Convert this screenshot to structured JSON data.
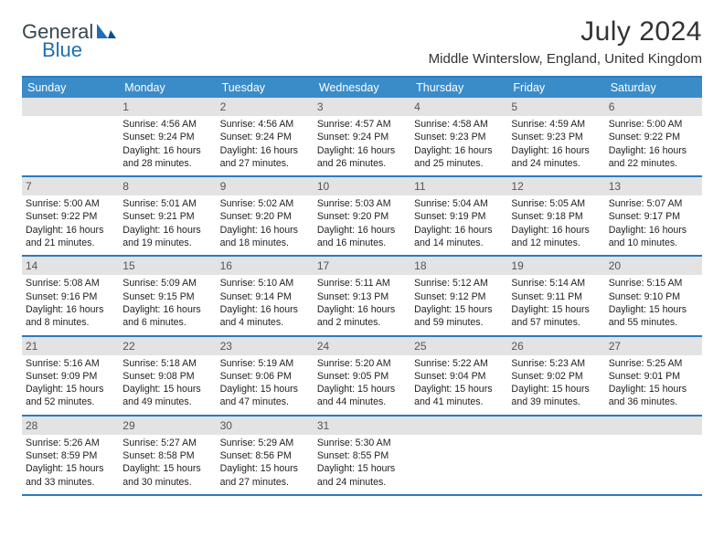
{
  "brand": {
    "word1": "General",
    "word2": "Blue"
  },
  "title": "July 2024",
  "location": "Middle Winterslow, England, United Kingdom",
  "colors": {
    "header_bar": "#3a8cc9",
    "rule": "#2b7bbd",
    "daynum_bg": "#e3e3e3",
    "text": "#222222",
    "logo_gray": "#37474f",
    "logo_blue": "#1f6fb2",
    "background": "#ffffff"
  },
  "typography": {
    "title_fontsize": 30,
    "location_fontsize": 15,
    "dow_fontsize": 12.5,
    "daynum_fontsize": 12,
    "body_fontsize": 10.6
  },
  "dow": [
    "Sunday",
    "Monday",
    "Tuesday",
    "Wednesday",
    "Thursday",
    "Friday",
    "Saturday"
  ],
  "weeks": [
    [
      {
        "n": "",
        "sunrise": "",
        "sunset": "",
        "daylight": ""
      },
      {
        "n": "1",
        "sunrise": "Sunrise: 4:56 AM",
        "sunset": "Sunset: 9:24 PM",
        "daylight": "Daylight: 16 hours and 28 minutes."
      },
      {
        "n": "2",
        "sunrise": "Sunrise: 4:56 AM",
        "sunset": "Sunset: 9:24 PM",
        "daylight": "Daylight: 16 hours and 27 minutes."
      },
      {
        "n": "3",
        "sunrise": "Sunrise: 4:57 AM",
        "sunset": "Sunset: 9:24 PM",
        "daylight": "Daylight: 16 hours and 26 minutes."
      },
      {
        "n": "4",
        "sunrise": "Sunrise: 4:58 AM",
        "sunset": "Sunset: 9:23 PM",
        "daylight": "Daylight: 16 hours and 25 minutes."
      },
      {
        "n": "5",
        "sunrise": "Sunrise: 4:59 AM",
        "sunset": "Sunset: 9:23 PM",
        "daylight": "Daylight: 16 hours and 24 minutes."
      },
      {
        "n": "6",
        "sunrise": "Sunrise: 5:00 AM",
        "sunset": "Sunset: 9:22 PM",
        "daylight": "Daylight: 16 hours and 22 minutes."
      }
    ],
    [
      {
        "n": "7",
        "sunrise": "Sunrise: 5:00 AM",
        "sunset": "Sunset: 9:22 PM",
        "daylight": "Daylight: 16 hours and 21 minutes."
      },
      {
        "n": "8",
        "sunrise": "Sunrise: 5:01 AM",
        "sunset": "Sunset: 9:21 PM",
        "daylight": "Daylight: 16 hours and 19 minutes."
      },
      {
        "n": "9",
        "sunrise": "Sunrise: 5:02 AM",
        "sunset": "Sunset: 9:20 PM",
        "daylight": "Daylight: 16 hours and 18 minutes."
      },
      {
        "n": "10",
        "sunrise": "Sunrise: 5:03 AM",
        "sunset": "Sunset: 9:20 PM",
        "daylight": "Daylight: 16 hours and 16 minutes."
      },
      {
        "n": "11",
        "sunrise": "Sunrise: 5:04 AM",
        "sunset": "Sunset: 9:19 PM",
        "daylight": "Daylight: 16 hours and 14 minutes."
      },
      {
        "n": "12",
        "sunrise": "Sunrise: 5:05 AM",
        "sunset": "Sunset: 9:18 PM",
        "daylight": "Daylight: 16 hours and 12 minutes."
      },
      {
        "n": "13",
        "sunrise": "Sunrise: 5:07 AM",
        "sunset": "Sunset: 9:17 PM",
        "daylight": "Daylight: 16 hours and 10 minutes."
      }
    ],
    [
      {
        "n": "14",
        "sunrise": "Sunrise: 5:08 AM",
        "sunset": "Sunset: 9:16 PM",
        "daylight": "Daylight: 16 hours and 8 minutes."
      },
      {
        "n": "15",
        "sunrise": "Sunrise: 5:09 AM",
        "sunset": "Sunset: 9:15 PM",
        "daylight": "Daylight: 16 hours and 6 minutes."
      },
      {
        "n": "16",
        "sunrise": "Sunrise: 5:10 AM",
        "sunset": "Sunset: 9:14 PM",
        "daylight": "Daylight: 16 hours and 4 minutes."
      },
      {
        "n": "17",
        "sunrise": "Sunrise: 5:11 AM",
        "sunset": "Sunset: 9:13 PM",
        "daylight": "Daylight: 16 hours and 2 minutes."
      },
      {
        "n": "18",
        "sunrise": "Sunrise: 5:12 AM",
        "sunset": "Sunset: 9:12 PM",
        "daylight": "Daylight: 15 hours and 59 minutes."
      },
      {
        "n": "19",
        "sunrise": "Sunrise: 5:14 AM",
        "sunset": "Sunset: 9:11 PM",
        "daylight": "Daylight: 15 hours and 57 minutes."
      },
      {
        "n": "20",
        "sunrise": "Sunrise: 5:15 AM",
        "sunset": "Sunset: 9:10 PM",
        "daylight": "Daylight: 15 hours and 55 minutes."
      }
    ],
    [
      {
        "n": "21",
        "sunrise": "Sunrise: 5:16 AM",
        "sunset": "Sunset: 9:09 PM",
        "daylight": "Daylight: 15 hours and 52 minutes."
      },
      {
        "n": "22",
        "sunrise": "Sunrise: 5:18 AM",
        "sunset": "Sunset: 9:08 PM",
        "daylight": "Daylight: 15 hours and 49 minutes."
      },
      {
        "n": "23",
        "sunrise": "Sunrise: 5:19 AM",
        "sunset": "Sunset: 9:06 PM",
        "daylight": "Daylight: 15 hours and 47 minutes."
      },
      {
        "n": "24",
        "sunrise": "Sunrise: 5:20 AM",
        "sunset": "Sunset: 9:05 PM",
        "daylight": "Daylight: 15 hours and 44 minutes."
      },
      {
        "n": "25",
        "sunrise": "Sunrise: 5:22 AM",
        "sunset": "Sunset: 9:04 PM",
        "daylight": "Daylight: 15 hours and 41 minutes."
      },
      {
        "n": "26",
        "sunrise": "Sunrise: 5:23 AM",
        "sunset": "Sunset: 9:02 PM",
        "daylight": "Daylight: 15 hours and 39 minutes."
      },
      {
        "n": "27",
        "sunrise": "Sunrise: 5:25 AM",
        "sunset": "Sunset: 9:01 PM",
        "daylight": "Daylight: 15 hours and 36 minutes."
      }
    ],
    [
      {
        "n": "28",
        "sunrise": "Sunrise: 5:26 AM",
        "sunset": "Sunset: 8:59 PM",
        "daylight": "Daylight: 15 hours and 33 minutes."
      },
      {
        "n": "29",
        "sunrise": "Sunrise: 5:27 AM",
        "sunset": "Sunset: 8:58 PM",
        "daylight": "Daylight: 15 hours and 30 minutes."
      },
      {
        "n": "30",
        "sunrise": "Sunrise: 5:29 AM",
        "sunset": "Sunset: 8:56 PM",
        "daylight": "Daylight: 15 hours and 27 minutes."
      },
      {
        "n": "31",
        "sunrise": "Sunrise: 5:30 AM",
        "sunset": "Sunset: 8:55 PM",
        "daylight": "Daylight: 15 hours and 24 minutes."
      },
      {
        "n": "",
        "sunrise": "",
        "sunset": "",
        "daylight": ""
      },
      {
        "n": "",
        "sunrise": "",
        "sunset": "",
        "daylight": ""
      },
      {
        "n": "",
        "sunrise": "",
        "sunset": "",
        "daylight": ""
      }
    ]
  ]
}
